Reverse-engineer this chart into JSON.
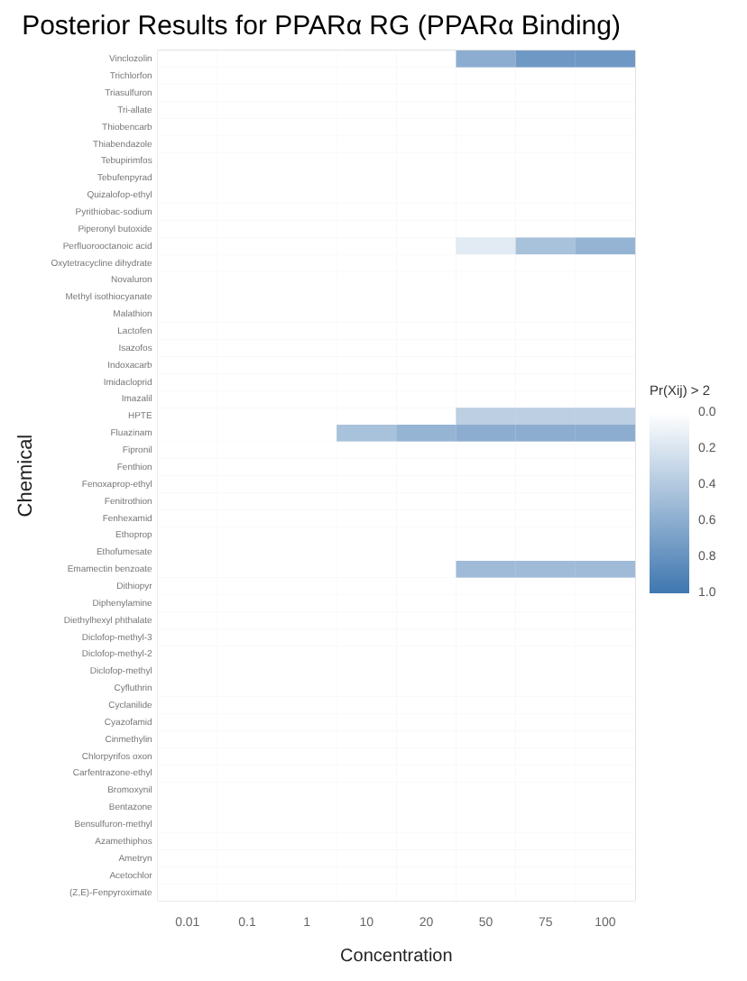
{
  "chart_data": {
    "type": "heatmap",
    "title": "Posterior Results for PPARα RG (PPARα Binding)",
    "xlabel": "Concentration",
    "ylabel": "Chemical",
    "clabel": "Pr(Xij) > 2",
    "color": "#3f77b0",
    "grid": true,
    "categories": [
      "0.01",
      "0.1",
      "1",
      "10",
      "20",
      "50",
      "75",
      "100"
    ],
    "y_categories": [
      "Vinclozolin",
      "Trichlorfon",
      "Triasulfuron",
      "Tri-allate",
      "Thiobencarb",
      "Thiabendazole",
      "Tebupirimfos",
      "Tebufenpyrad",
      "Quizalofop-ethyl",
      "Pyrithiobac-sodium",
      "Piperonyl butoxide",
      "Perfluorooctanoic acid",
      "Oxytetracycline dihydrate",
      "Novaluron",
      "Methyl isothiocyanate",
      "Malathion",
      "Lactofen",
      "Isazofos",
      "Indoxacarb",
      "Imidacloprid",
      "Imazalil",
      "HPTE",
      "Fluazinam",
      "Fipronil",
      "Fenthion",
      "Fenoxaprop-ethyl",
      "Fenitrothion",
      "Fenhexamid",
      "Ethoprop",
      "Ethofumesate",
      "Emamectin benzoate",
      "Dithiopyr",
      "Diphenylamine",
      "Diethylhexyl phthalate",
      "Diclofop-methyl-3",
      "Diclofop-methyl-2",
      "Diclofop-methyl",
      "Cyfluthrin",
      "Cyclanilide",
      "Cyazofamid",
      "Cinmethylin",
      "Chlorpyrifos oxon",
      "Carfentrazone-ethyl",
      "Bromoxynil",
      "Bentazone",
      "Bensulfuron-methyl",
      "Azamethiphos",
      "Ametryn",
      "Acetochlor",
      "(Z,E)-Fenpyroximate"
    ],
    "cells": [
      [
        0,
        0,
        0,
        0,
        0,
        0.6,
        0.75,
        0.75
      ],
      [
        0,
        0,
        0,
        0,
        0,
        0,
        0,
        0
      ],
      [
        0,
        0,
        0,
        0,
        0,
        0,
        0,
        0
      ],
      [
        0,
        0,
        0,
        0,
        0,
        0,
        0,
        0
      ],
      [
        0,
        0,
        0,
        0,
        0,
        0,
        0,
        0
      ],
      [
        0,
        0,
        0,
        0,
        0,
        0,
        0,
        0
      ],
      [
        0,
        0,
        0,
        0,
        0,
        0,
        0,
        0
      ],
      [
        0,
        0,
        0,
        0,
        0,
        0,
        0,
        0
      ],
      [
        0,
        0,
        0,
        0,
        0,
        0,
        0,
        0
      ],
      [
        0,
        0,
        0,
        0,
        0,
        0,
        0,
        0
      ],
      [
        0,
        0,
        0,
        0,
        0,
        0,
        0,
        0
      ],
      [
        0,
        0,
        0,
        0,
        0,
        0.15,
        0.45,
        0.55
      ],
      [
        0,
        0,
        0,
        0,
        0,
        0,
        0,
        0
      ],
      [
        0,
        0,
        0,
        0,
        0,
        0,
        0,
        0
      ],
      [
        0,
        0,
        0,
        0,
        0,
        0,
        0,
        0
      ],
      [
        0,
        0,
        0,
        0,
        0,
        0,
        0,
        0
      ],
      [
        0,
        0,
        0,
        0,
        0,
        0,
        0,
        0
      ],
      [
        0,
        0,
        0,
        0,
        0,
        0,
        0,
        0
      ],
      [
        0,
        0,
        0,
        0,
        0,
        0,
        0,
        0
      ],
      [
        0,
        0,
        0,
        0,
        0,
        0,
        0,
        0
      ],
      [
        0,
        0,
        0,
        0,
        0,
        0,
        0,
        0
      ],
      [
        0,
        0,
        0,
        0,
        0,
        0.35,
        0.35,
        0.35
      ],
      [
        0,
        0,
        0,
        0.45,
        0.55,
        0.6,
        0.6,
        0.6
      ],
      [
        0,
        0,
        0,
        0,
        0,
        0,
        0,
        0
      ],
      [
        0,
        0,
        0,
        0,
        0,
        0,
        0,
        0
      ],
      [
        0,
        0,
        0,
        0,
        0,
        0,
        0,
        0
      ],
      [
        0,
        0,
        0,
        0,
        0,
        0,
        0,
        0
      ],
      [
        0,
        0,
        0,
        0,
        0,
        0,
        0,
        0
      ],
      [
        0,
        0,
        0,
        0,
        0,
        0,
        0,
        0
      ],
      [
        0,
        0,
        0,
        0,
        0,
        0,
        0,
        0
      ],
      [
        0,
        0,
        0,
        0,
        0,
        0.5,
        0.5,
        0.5
      ],
      [
        0,
        0,
        0,
        0,
        0,
        0,
        0,
        0
      ],
      [
        0,
        0,
        0,
        0,
        0,
        0,
        0,
        0
      ],
      [
        0,
        0,
        0,
        0,
        0,
        0,
        0,
        0
      ],
      [
        0,
        0,
        0,
        0,
        0,
        0,
        0,
        0
      ],
      [
        0,
        0,
        0,
        0,
        0,
        0,
        0,
        0
      ],
      [
        0,
        0,
        0,
        0,
        0,
        0,
        0,
        0
      ],
      [
        0,
        0,
        0,
        0,
        0,
        0,
        0,
        0
      ],
      [
        0,
        0,
        0,
        0,
        0,
        0,
        0,
        0
      ],
      [
        0,
        0,
        0,
        0,
        0,
        0,
        0,
        0
      ],
      [
        0,
        0,
        0,
        0,
        0,
        0,
        0,
        0
      ],
      [
        0,
        0,
        0,
        0,
        0,
        0,
        0,
        0
      ],
      [
        0,
        0,
        0,
        0,
        0,
        0,
        0,
        0
      ],
      [
        0,
        0,
        0,
        0,
        0,
        0,
        0,
        0
      ],
      [
        0,
        0,
        0,
        0,
        0,
        0,
        0,
        0
      ],
      [
        0,
        0,
        0,
        0,
        0,
        0,
        0,
        0
      ],
      [
        0,
        0,
        0,
        0,
        0,
        0,
        0,
        0
      ],
      [
        0,
        0,
        0,
        0,
        0,
        0,
        0,
        0
      ],
      [
        0,
        0,
        0,
        0,
        0,
        0,
        0,
        0
      ],
      [
        0,
        0,
        0,
        0,
        0,
        0,
        0,
        0
      ]
    ],
    "clim": [
      0,
      1
    ],
    "cticks": [
      {
        "value": 0,
        "label": "0.0"
      },
      0.2,
      0.4,
      0.6,
      0.8,
      {
        "value": 1,
        "label": "1.0"
      }
    ]
  }
}
